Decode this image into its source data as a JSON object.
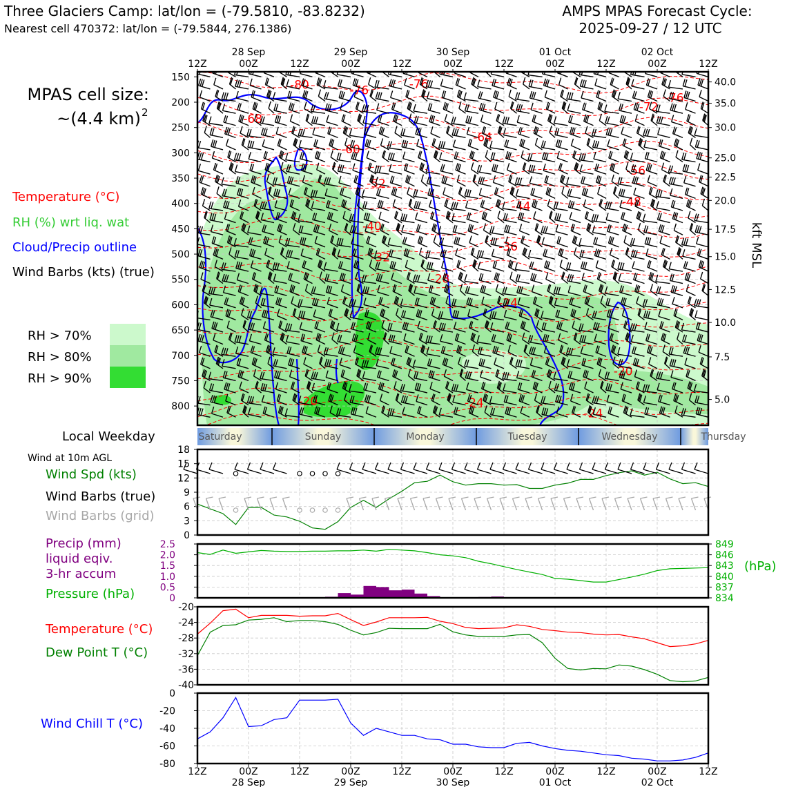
{
  "header": {
    "title": "Three Glaciers Camp: lat/lon = (-79.5810, -83.8232)",
    "subtitle": "Nearest cell 470372: lat/lon = (-79.5844, 276.1386)",
    "cycle_line1": "AMPS MPAS Forecast Cycle:",
    "cycle_line2": "2025-09-27 / 12 UTC",
    "cell_size_line1": "MPAS cell size:",
    "cell_size_line2": "~(4.4 km)",
    "cell_size_exp": "2"
  },
  "colors": {
    "temperature": "#ff0000",
    "rh": "#33cc33",
    "cloud": "#0000ff",
    "wind_speed": "#008000",
    "barb_grid": "#a8a8a8",
    "precip": "#800080",
    "pressure": "#00b000",
    "dew_point": "#008000",
    "wind_chill": "#0000ff",
    "rh70": "#ccf9cc",
    "rh80": "#a0e9a0",
    "rh90": "#33dd33"
  },
  "legend": {
    "temperature": "Temperature (°C)",
    "rh": "RH (%) wrt liq. wat",
    "cloud": "Cloud/Precip outline",
    "wind": "Wind Barbs (kts) (true)",
    "rh_levels": [
      "RH > 70%",
      "RH > 80%",
      "RH > 90%"
    ]
  },
  "time_axis": {
    "tick_labels": [
      "12Z",
      "00Z",
      "12Z",
      "00Z",
      "12Z",
      "00Z",
      "12Z",
      "00Z",
      "12Z",
      "00Z",
      "12Z"
    ],
    "tick_hours": [
      0,
      12,
      24,
      36,
      48,
      60,
      72,
      84,
      96,
      108,
      120
    ],
    "date_labels": [
      "28 Sep",
      "29 Sep",
      "30 Sep",
      "01 Oct",
      "02 Oct"
    ],
    "date_hours": [
      12,
      36,
      60,
      84,
      108
    ]
  },
  "weekday_bar": {
    "label": "Local Weekday",
    "days": [
      "Saturday",
      "Sunday",
      "Monday",
      "Tuesday",
      "Wednesday",
      "Thursday"
    ]
  },
  "panels": {
    "wind10": {
      "heading": "Wind at 10m AGL",
      "label_speed": "Wind Spd (kts)",
      "label_barbs": "Wind Barbs (true)",
      "label_barbs_grid": "Wind Barbs (grid)"
    },
    "precip": {
      "label1": "Precip (mm)",
      "label2": "liquid eqiv.",
      "label3": "3-hr accum",
      "label_pressure": "Pressure (hPa)",
      "right_unit": "(hPa)"
    },
    "temp": {
      "label_t": "Temperature (°C)",
      "label_td": "Dew Point T (°C)"
    },
    "chill": {
      "label": "Wind Chill T (°C)"
    }
  },
  "chart_data": [
    {
      "type": "time-height cross section",
      "pressure_ticks_hpa": [
        150,
        200,
        250,
        300,
        350,
        400,
        450,
        500,
        550,
        600,
        650,
        700,
        750,
        800
      ],
      "height_ticks_kft": [
        "40.0",
        "35.0",
        "30.0",
        "25.0",
        "22.5",
        "20.0",
        "17.5",
        "15.0",
        "12.5",
        "10.0",
        "7.5",
        "5.0"
      ],
      "height_tick_pressure_hpa": [
        160,
        202,
        250,
        310,
        348,
        394,
        451,
        505,
        570,
        635,
        703,
        787
      ],
      "right_axis_label": "kft MSL",
      "temperature_contour_labels": [
        {
          "value": "-80",
          "hour": 24,
          "p": 165
        },
        {
          "value": "-76",
          "hour": 38,
          "p": 176
        },
        {
          "value": "-76",
          "hour": 52,
          "p": 164
        },
        {
          "value": "-76",
          "hour": 112,
          "p": 191
        },
        {
          "value": "-72",
          "hour": 106,
          "p": 209
        },
        {
          "value": "-68",
          "hour": 13,
          "p": 233
        },
        {
          "value": "-64",
          "hour": 67,
          "p": 269
        },
        {
          "value": "-60",
          "hour": 36,
          "p": 293
        },
        {
          "value": "-56",
          "hour": 103,
          "p": 335
        },
        {
          "value": "-52",
          "hour": 42,
          "p": 360
        },
        {
          "value": "-48",
          "hour": 102,
          "p": 396
        },
        {
          "value": "-44",
          "hour": 76,
          "p": 405
        },
        {
          "value": "-40",
          "hour": 41,
          "p": 445
        },
        {
          "value": "-36",
          "hour": 73,
          "p": 485
        },
        {
          "value": "-32",
          "hour": 43,
          "p": 506
        },
        {
          "value": "-28",
          "hour": 57,
          "p": 548
        },
        {
          "value": "-24",
          "hour": 73,
          "p": 596
        },
        {
          "value": "-24",
          "hour": 65,
          "p": 793
        },
        {
          "value": "-24",
          "hour": 93,
          "p": 814
        },
        {
          "value": "-20",
          "hour": 26,
          "p": 790
        },
        {
          "value": "-20",
          "hour": 100,
          "p": 731
        }
      ]
    },
    {
      "type": "line",
      "name": "Wind Spd (kts)",
      "x_hours": [
        0,
        3,
        6,
        9,
        12,
        15,
        18,
        21,
        24,
        27,
        30,
        33,
        36,
        39,
        42,
        45,
        48,
        51,
        54,
        57,
        60,
        63,
        66,
        69,
        72,
        75,
        78,
        81,
        84,
        87,
        90,
        93,
        96,
        99,
        102,
        105,
        108,
        111,
        114,
        117,
        120
      ],
      "values": [
        6.5,
        5.5,
        4.5,
        2.2,
        5.8,
        5.8,
        4.2,
        3.8,
        2.9,
        1.5,
        1.2,
        2.8,
        5.8,
        7.3,
        5.8,
        7.6,
        9.2,
        11,
        11.3,
        12.6,
        11.2,
        10.5,
        10.8,
        10.8,
        10.5,
        10.6,
        9.8,
        9.8,
        10.5,
        10.9,
        11.7,
        11.7,
        12.5,
        13.1,
        13.5,
        12.6,
        13.2,
        11.8,
        10.8,
        11,
        10.2
      ],
      "ylim": [
        0,
        18
      ],
      "yticks": [
        "0",
        "3",
        "6",
        "9",
        "12",
        "15",
        "18"
      ]
    },
    {
      "type": "bar",
      "name": "Precip (mm) 3-hr accum",
      "x_hours": [
        33,
        36,
        39,
        42,
        45,
        48,
        51,
        54,
        57,
        69,
        72
      ],
      "values": [
        0.05,
        0.22,
        0.15,
        0.55,
        0.5,
        0.35,
        0.38,
        0.2,
        0.08,
        0.04,
        0.06
      ],
      "ylim": [
        0,
        2.5
      ],
      "yticks": [
        "0",
        "0.5",
        "1.0",
        "1.5",
        "2.0",
        "2.5"
      ]
    },
    {
      "type": "line",
      "name": "Pressure (hPa)",
      "x_hours": [
        0,
        3,
        6,
        9,
        12,
        15,
        18,
        21,
        24,
        27,
        30,
        33,
        36,
        39,
        42,
        45,
        48,
        51,
        54,
        57,
        60,
        63,
        66,
        69,
        72,
        75,
        78,
        81,
        84,
        87,
        90,
        93,
        96,
        99,
        102,
        105,
        108,
        111,
        114,
        117,
        120
      ],
      "values": [
        846.6,
        846.1,
        847.3,
        846.4,
        846.8,
        847.2,
        847.0,
        846.9,
        846.9,
        847.0,
        847.0,
        847.1,
        847.1,
        847.3,
        847.0,
        847.5,
        847.3,
        847.1,
        846.6,
        846.0,
        845.7,
        845.2,
        844.2,
        843.5,
        842.7,
        841.9,
        841.2,
        840.5,
        839.4,
        839.2,
        838.8,
        838.4,
        838.4,
        839.1,
        839.8,
        840.6,
        841.6,
        842.1,
        842.2,
        842.3,
        842.4
      ],
      "ylim": [
        834,
        849
      ],
      "yticks": [
        "834",
        "837",
        "840",
        "843",
        "846",
        "849"
      ]
    },
    {
      "type": "line",
      "series": [
        {
          "name": "Temperature (°C)",
          "x_hours": [
            0,
            3,
            6,
            9,
            12,
            15,
            18,
            21,
            24,
            27,
            30,
            33,
            36,
            39,
            42,
            45,
            48,
            51,
            54,
            57,
            60,
            63,
            66,
            69,
            72,
            75,
            78,
            81,
            84,
            87,
            90,
            93,
            96,
            99,
            102,
            105,
            108,
            111,
            114,
            117,
            120
          ],
          "values": [
            -27,
            -24.2,
            -21,
            -20.6,
            -22.8,
            -22.2,
            -22.2,
            -22.2,
            -22.4,
            -22.3,
            -22.3,
            -21.7,
            -23.3,
            -24.8,
            -23.9,
            -22.8,
            -22.8,
            -22.8,
            -22.7,
            -23.7,
            -24.3,
            -25.3,
            -25.6,
            -25.5,
            -25.4,
            -24.6,
            -25,
            -25.8,
            -26.1,
            -26.5,
            -26.6,
            -27,
            -27.2,
            -27.1,
            -27.7,
            -28.2,
            -29.2,
            -30.2,
            -30.0,
            -29.5,
            -28.6
          ]
        },
        {
          "name": "Dew Point T (°C)",
          "x_hours": [
            0,
            3,
            6,
            9,
            12,
            15,
            18,
            21,
            24,
            27,
            30,
            33,
            36,
            39,
            42,
            45,
            48,
            51,
            54,
            57,
            60,
            63,
            66,
            69,
            72,
            75,
            78,
            81,
            84,
            87,
            90,
            93,
            96,
            99,
            102,
            105,
            108,
            111,
            114,
            117,
            120
          ],
          "values": [
            -32.5,
            -26.5,
            -24.8,
            -24.6,
            -23.4,
            -23.2,
            -22.8,
            -23.8,
            -23.5,
            -23.5,
            -23.8,
            -24.5,
            -26,
            -27.2,
            -26.6,
            -25.5,
            -25.6,
            -25.6,
            -25.6,
            -24.5,
            -26.4,
            -27.2,
            -27.6,
            -27.6,
            -27.6,
            -27.2,
            -27.1,
            -29.2,
            -33.2,
            -35.8,
            -36.2,
            -35.8,
            -35.9,
            -34.9,
            -35.2,
            -36.1,
            -37.3,
            -38.9,
            -39.2,
            -39.0,
            -38.1
          ]
        }
      ],
      "ylim": [
        -40,
        -20
      ],
      "yticks": [
        "-40",
        "-36",
        "-32",
        "-28",
        "-24",
        "-20"
      ]
    },
    {
      "type": "line",
      "name": "Wind Chill T (°C)",
      "x_hours": [
        0,
        3,
        6,
        9,
        12,
        15,
        18,
        21,
        24,
        27,
        30,
        33,
        36,
        39,
        42,
        45,
        48,
        51,
        54,
        57,
        60,
        63,
        66,
        69,
        72,
        75,
        78,
        81,
        84,
        87,
        90,
        93,
        96,
        99,
        102,
        105,
        108,
        111,
        114,
        117,
        120
      ],
      "values": [
        -52,
        -44,
        -28,
        -5,
        -38,
        -37,
        -30,
        -28,
        -8,
        -8,
        -8,
        -7,
        -34,
        -48,
        -40,
        -44,
        -48,
        -48,
        -52,
        -53,
        -58,
        -58,
        -61,
        -62,
        -62,
        -57,
        -56,
        -60,
        -63,
        -65,
        -66,
        -68,
        -70,
        -71,
        -74,
        -75,
        -77,
        -77,
        -76,
        -73,
        -68
      ],
      "ylim": [
        -80,
        0
      ],
      "yticks": [
        "-80",
        "-60",
        "-40",
        "-20",
        "0"
      ]
    }
  ]
}
